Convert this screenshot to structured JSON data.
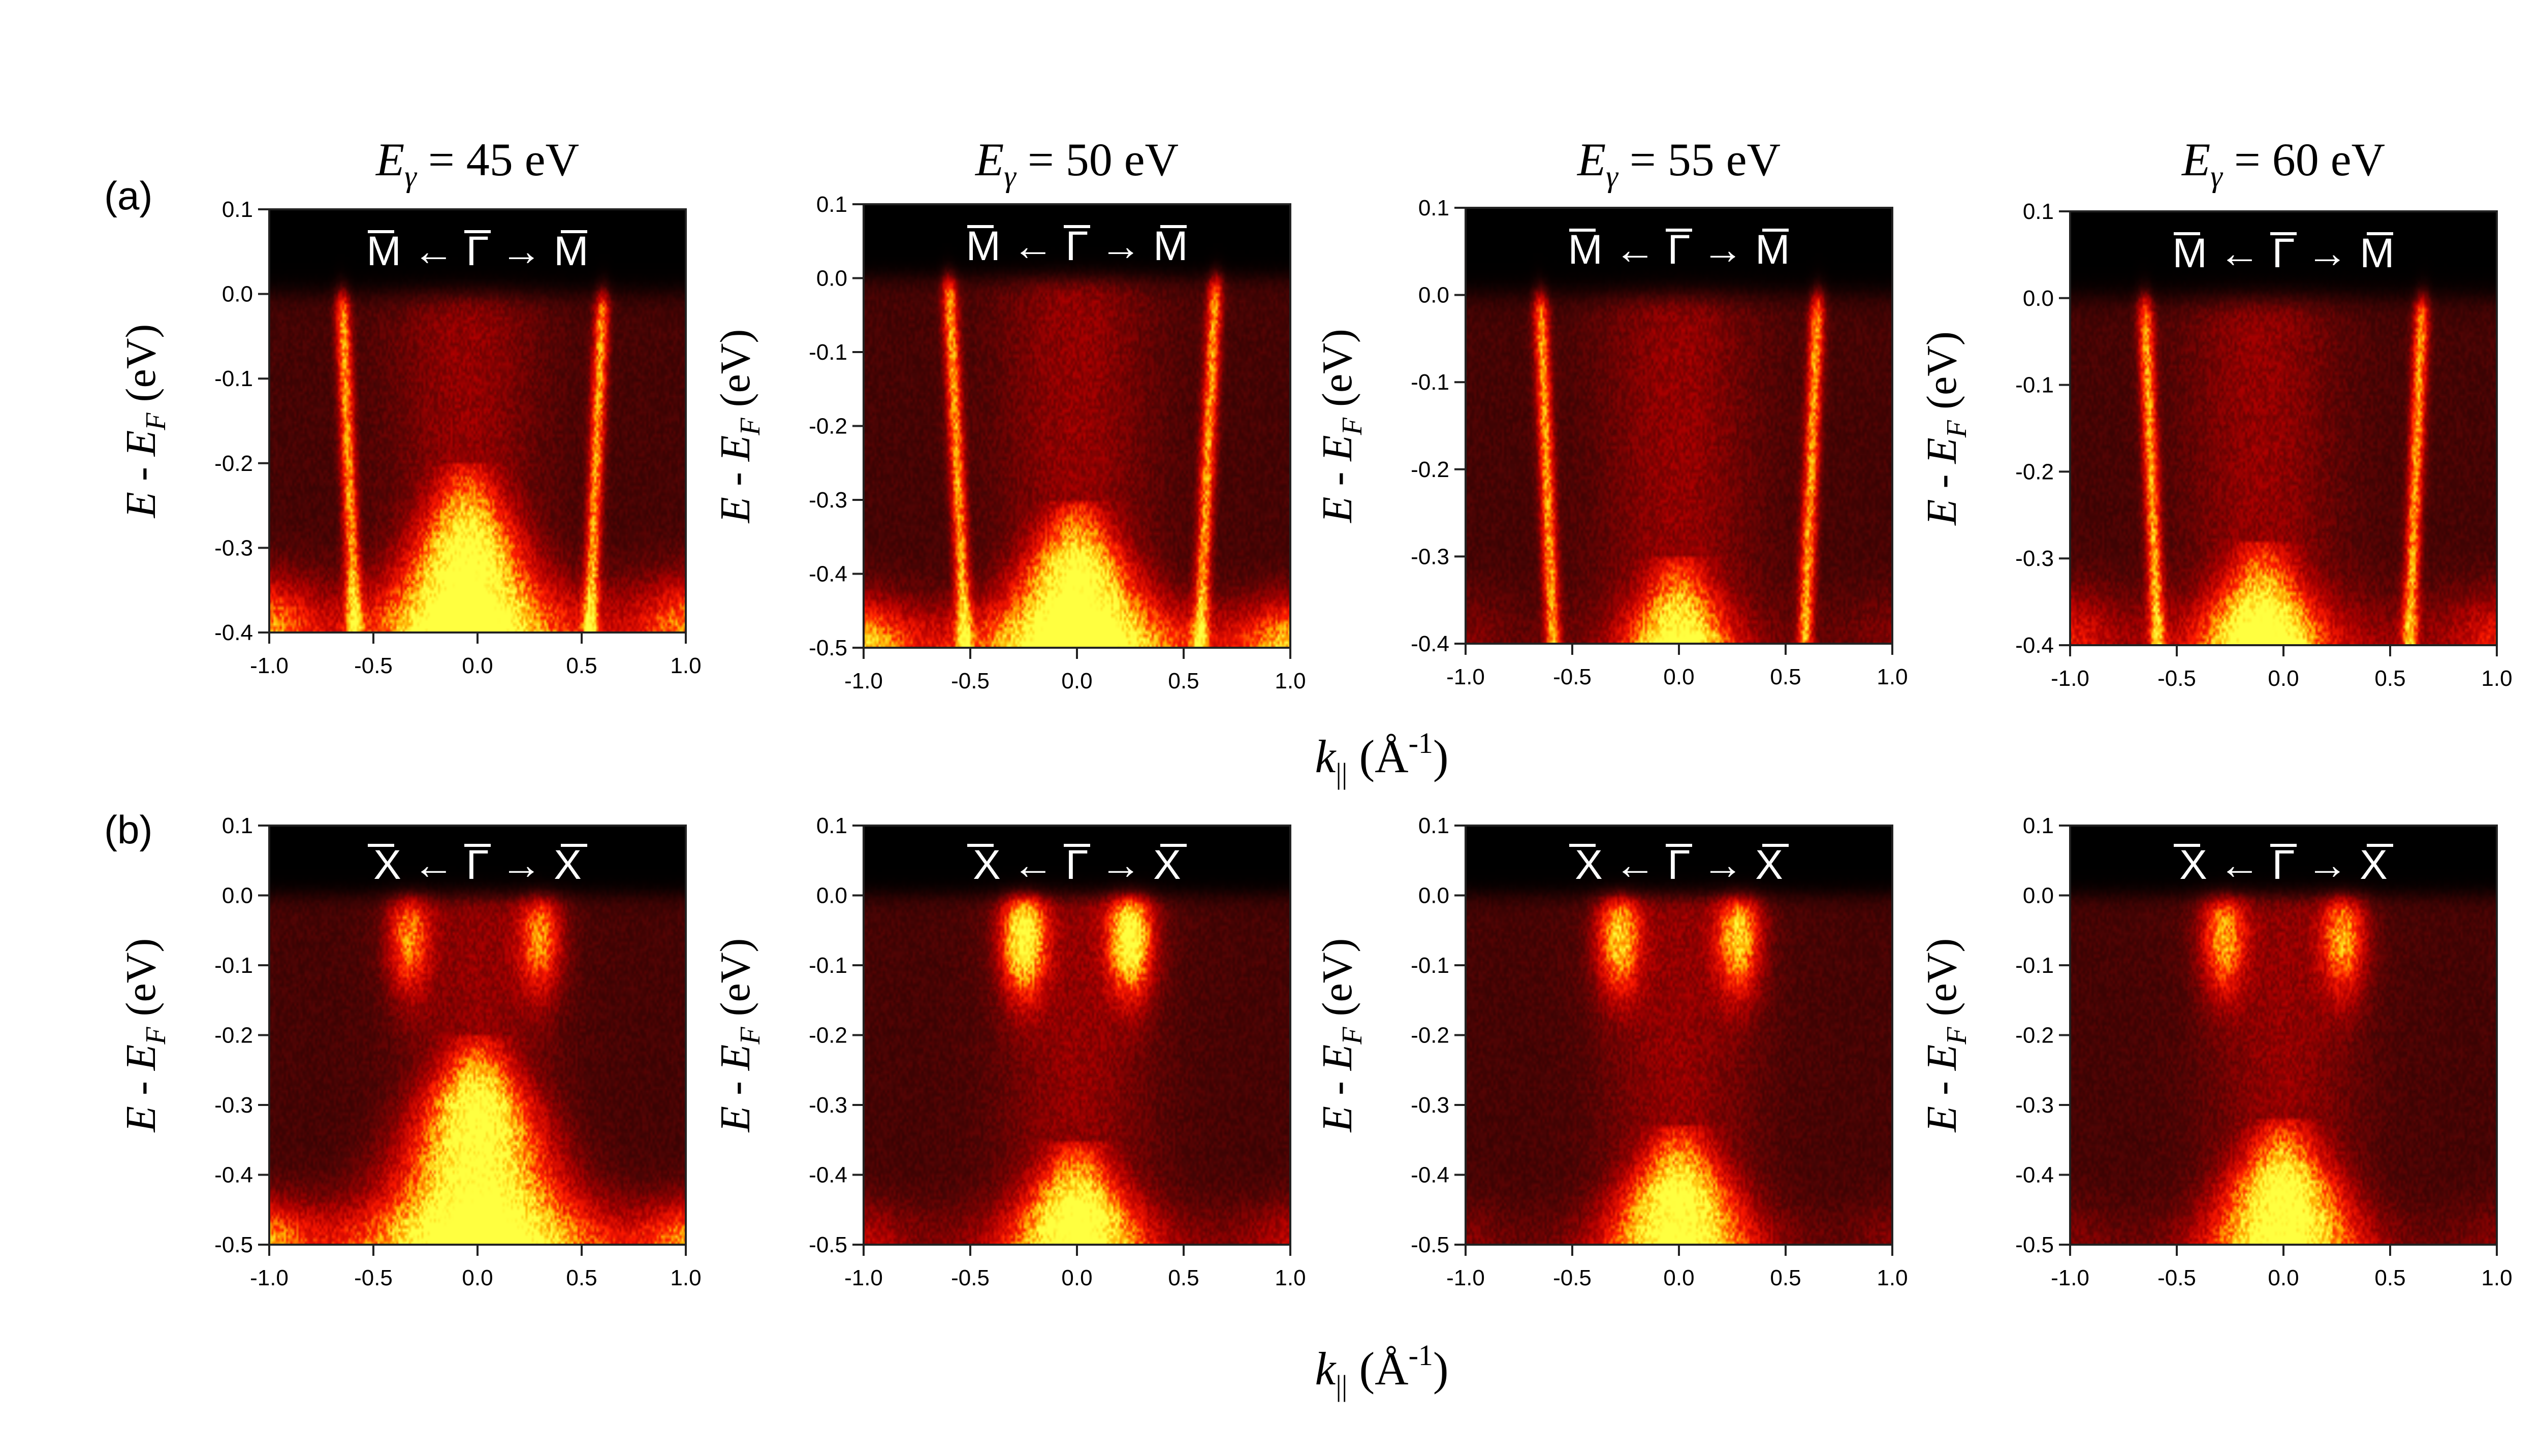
{
  "figure": {
    "column_titles": [
      {
        "sym": "E",
        "sub": "γ",
        "rest": " = 45 eV"
      },
      {
        "sym": "E",
        "sub": "γ",
        "rest": " = 50 eV"
      },
      {
        "sym": "E",
        "sub": "γ",
        "rest": " = 55 eV"
      },
      {
        "sym": "E",
        "sub": "γ",
        "rest": " = 60 eV"
      }
    ],
    "row_labels": [
      "(a)",
      "(b)"
    ],
    "ylabel": {
      "pre": "E - E",
      "sub": "F",
      "post": " (eV)"
    },
    "xlabel": {
      "pre": "k",
      "sub": "||",
      "unit": " (Å",
      "sup": "-1",
      "post": ")"
    },
    "colormap": [
      "#000000",
      "#4a0404",
      "#b00000",
      "#ff1a00",
      "#ffb000",
      "#ffff40"
    ],
    "direction_labels": {
      "a": {
        "left": "M",
        "arrow1": "←",
        "center": "Γ",
        "arrow2": "→",
        "right": "M"
      },
      "b": {
        "left": "X",
        "arrow1": "←",
        "center": "Γ",
        "arrow2": "→",
        "right": "X"
      }
    }
  },
  "chart_data": [
    {
      "panel": "a1",
      "type": "heatmap",
      "title": "Eγ = 45 eV",
      "direction": "M ← Γ → M",
      "xlabel": "k|| (Å-1)",
      "ylabel": "E - EF (eV)",
      "xlim": [
        -1.0,
        1.0
      ],
      "ylim": [
        -0.4,
        0.1
      ],
      "xticks": [
        -1.0,
        -0.5,
        0.0,
        0.5,
        1.0
      ],
      "xtick_labels": [
        "-1.0",
        "-0.5",
        "0.0",
        "0.5",
        "1.0"
      ],
      "yticks": [
        0.1,
        0.0,
        -0.1,
        -0.2,
        -0.3,
        -0.4
      ],
      "ytick_labels": [
        "0.1",
        "0.0",
        "-0.1",
        "-0.2",
        "-0.3",
        "-0.4"
      ],
      "features": {
        "bands": [
          {
            "k": -0.65
          },
          {
            "k": 0.6
          }
        ],
        "hole_top": -0.2,
        "hole_center": -0.05,
        "edge_bright": 0.5
      }
    },
    {
      "panel": "a2",
      "type": "heatmap",
      "title": "Eγ = 50 eV",
      "direction": "M ← Γ → M",
      "xlabel": "k|| (Å-1)",
      "ylabel": "E - EF (eV)",
      "xlim": [
        -1.0,
        1.0
      ],
      "ylim": [
        -0.5,
        0.1
      ],
      "xticks": [
        -1.0,
        -0.5,
        0.0,
        0.5,
        1.0
      ],
      "xtick_labels": [
        "-1.0",
        "-0.5",
        "0.0",
        "0.5",
        "1.0"
      ],
      "yticks": [
        0.1,
        0.0,
        -0.1,
        -0.2,
        -0.3,
        -0.4,
        -0.5
      ],
      "ytick_labels": [
        "0.1",
        "0.0",
        "-0.1",
        "-0.2",
        "-0.3",
        "-0.4",
        "-0.5"
      ],
      "features": {
        "bands": [
          {
            "k": -0.6
          },
          {
            "k": 0.65
          }
        ],
        "hole_top": -0.3,
        "hole_center": 0.0,
        "edge_bright": 0.6
      }
    },
    {
      "panel": "a3",
      "type": "heatmap",
      "title": "Eγ = 55 eV",
      "direction": "M ← Γ → M",
      "xlabel": "k|| (Å-1)",
      "ylabel": "E - EF (eV)",
      "xlim": [
        -1.0,
        1.0
      ],
      "ylim": [
        -0.4,
        0.1
      ],
      "xticks": [
        -1.0,
        -0.5,
        0.0,
        0.5,
        1.0
      ],
      "xtick_labels": [
        "-1.0",
        "-0.5",
        "0.0",
        "0.5",
        "1.0"
      ],
      "yticks": [
        0.1,
        0.0,
        -0.1,
        -0.2,
        -0.3,
        -0.4
      ],
      "ytick_labels": [
        "0.1",
        "0.0",
        "-0.1",
        "-0.2",
        "-0.3",
        "-0.4"
      ],
      "features": {
        "bands": [
          {
            "k": -0.65
          },
          {
            "k": 0.65
          }
        ],
        "hole_top": -0.3,
        "hole_center": 0.0,
        "edge_bright": 0.1
      }
    },
    {
      "panel": "a4",
      "type": "heatmap",
      "title": "Eγ = 60 eV",
      "direction": "M ← Γ → M",
      "xlabel": "k|| (Å-1)",
      "ylabel": "E - EF (eV)",
      "xlim": [
        -1.0,
        1.0
      ],
      "ylim": [
        -0.4,
        0.1
      ],
      "xticks": [
        -1.0,
        -0.5,
        0.0,
        0.5,
        1.0
      ],
      "xtick_labels": [
        "-1.0",
        "-0.5",
        "0.0",
        "0.5",
        "1.0"
      ],
      "yticks": [
        0.1,
        0.0,
        -0.1,
        -0.2,
        -0.3,
        -0.4
      ],
      "ytick_labels": [
        "0.1",
        "0.0",
        "-0.1",
        "-0.2",
        "-0.3",
        "-0.4"
      ],
      "features": {
        "bands": [
          {
            "k": -0.65
          },
          {
            "k": 0.65
          }
        ],
        "hole_top": -0.28,
        "hole_center": -0.1,
        "edge_bright": 0.3
      }
    },
    {
      "panel": "b1",
      "type": "heatmap",
      "title": "Eγ = 45 eV",
      "direction": "X ← Γ → X",
      "xlabel": "k|| (Å-1)",
      "ylabel": "E - EF (eV)",
      "xlim": [
        -1.0,
        1.0
      ],
      "ylim": [
        -0.5,
        0.1
      ],
      "xticks": [
        -1.0,
        -0.5,
        0.0,
        0.5,
        1.0
      ],
      "xtick_labels": [
        "-1.0",
        "-0.5",
        "0.0",
        "0.5",
        "1.0"
      ],
      "yticks": [
        0.1,
        0.0,
        -0.1,
        -0.2,
        -0.3,
        -0.4,
        -0.5
      ],
      "ytick_labels": [
        "0.1",
        "0.0",
        "-0.1",
        "-0.2",
        "-0.3",
        "-0.4",
        "-0.5"
      ],
      "features": {
        "pockets": [
          {
            "k": -0.33
          },
          {
            "k": 0.3
          }
        ],
        "pocket_strength": 0.6,
        "hole_top": -0.2,
        "hole_center": 0.0,
        "edge_bright": 0.5
      }
    },
    {
      "panel": "b2",
      "type": "heatmap",
      "title": "Eγ = 50 eV",
      "direction": "X ← Γ → X",
      "xlabel": "k|| (Å-1)",
      "ylabel": "E - EF (eV)",
      "xlim": [
        -1.0,
        1.0
      ],
      "ylim": [
        -0.5,
        0.1
      ],
      "xticks": [
        -1.0,
        -0.5,
        0.0,
        0.5,
        1.0
      ],
      "xtick_labels": [
        "-1.0",
        "-0.5",
        "0.0",
        "0.5",
        "1.0"
      ],
      "yticks": [
        0.1,
        0.0,
        -0.1,
        -0.2,
        -0.3,
        -0.4,
        -0.5
      ],
      "ytick_labels": [
        "0.1",
        "0.0",
        "-0.1",
        "-0.2",
        "-0.3",
        "-0.4",
        "-0.5"
      ],
      "features": {
        "pockets": [
          {
            "k": -0.25
          },
          {
            "k": 0.25
          }
        ],
        "pocket_strength": 1.0,
        "hole_top": -0.35,
        "hole_center": 0.0,
        "edge_bright": 0.2
      }
    },
    {
      "panel": "b3",
      "type": "heatmap",
      "title": "Eγ = 55 eV",
      "direction": "X ← Γ → X",
      "xlabel": "k|| (Å-1)",
      "ylabel": "E - EF (eV)",
      "xlim": [
        -1.0,
        1.0
      ],
      "ylim": [
        -0.5,
        0.1
      ],
      "xticks": [
        -1.0,
        -0.5,
        0.0,
        0.5,
        1.0
      ],
      "xtick_labels": [
        "-1.0",
        "-0.5",
        "0.0",
        "0.5",
        "1.0"
      ],
      "yticks": [
        0.1,
        0.0,
        -0.1,
        -0.2,
        -0.3,
        -0.4,
        -0.5
      ],
      "ytick_labels": [
        "0.1",
        "0.0",
        "-0.1",
        "-0.2",
        "-0.3",
        "-0.4",
        "-0.5"
      ],
      "features": {
        "pockets": [
          {
            "k": -0.28
          },
          {
            "k": 0.28
          }
        ],
        "pocket_strength": 0.75,
        "hole_top": -0.33,
        "hole_center": 0.0,
        "edge_bright": 0.1
      }
    },
    {
      "panel": "b4",
      "type": "heatmap",
      "title": "Eγ = 60 eV",
      "direction": "X ← Γ → X",
      "xlabel": "k|| (Å-1)",
      "ylabel": "E - EF (eV)",
      "xlim": [
        -1.0,
        1.0
      ],
      "ylim": [
        -0.5,
        0.1
      ],
      "xticks": [
        -1.0,
        -0.5,
        0.0,
        0.5,
        1.0
      ],
      "xtick_labels": [
        "-1.0",
        "-0.5",
        "0.0",
        "0.5",
        "1.0"
      ],
      "yticks": [
        0.1,
        0.0,
        -0.1,
        -0.2,
        -0.3,
        -0.4,
        -0.5
      ],
      "ytick_labels": [
        "0.1",
        "0.0",
        "-0.1",
        "-0.2",
        "-0.3",
        "-0.4",
        "-0.5"
      ],
      "features": {
        "pockets": [
          {
            "k": -0.28
          },
          {
            "k": 0.28
          }
        ],
        "pocket_strength": 0.65,
        "hole_top": -0.32,
        "hole_center": 0.0,
        "edge_bright": 0.1
      }
    }
  ]
}
